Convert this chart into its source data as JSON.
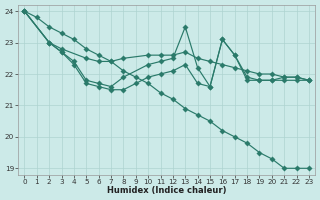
{
  "xlabel": "Humidex (Indice chaleur)",
  "bg_color": "#cceae8",
  "line_color": "#2a7a6a",
  "grid_color": "#aed4d0",
  "xlim": [
    -0.5,
    23.5
  ],
  "ylim": [
    18.8,
    24.2
  ],
  "yticks": [
    19,
    20,
    21,
    22,
    23,
    24
  ],
  "xticks": [
    0,
    1,
    2,
    3,
    4,
    5,
    6,
    7,
    8,
    9,
    10,
    11,
    12,
    13,
    14,
    15,
    16,
    17,
    18,
    19,
    20,
    21,
    22,
    23
  ],
  "series": [
    {
      "x": [
        0,
        1,
        2,
        3,
        4,
        5,
        6,
        7,
        8,
        9,
        10,
        11,
        12,
        13,
        14,
        15,
        16,
        17,
        18,
        19,
        20,
        21,
        22,
        23
      ],
      "y": [
        24.0,
        23.8,
        23.5,
        23.3,
        23.1,
        22.8,
        22.6,
        22.4,
        22.1,
        21.9,
        21.7,
        21.4,
        21.2,
        20.9,
        20.7,
        20.5,
        20.2,
        20.0,
        19.8,
        19.5,
        19.3,
        19.0,
        19.0,
        19.0
      ]
    },
    {
      "x": [
        0,
        2,
        3,
        5,
        6,
        7,
        8,
        10,
        11,
        12,
        13,
        14,
        15,
        16,
        17,
        18,
        19,
        20,
        21,
        22,
        23
      ],
      "y": [
        24.0,
        23.0,
        22.8,
        22.5,
        22.4,
        22.4,
        22.5,
        22.6,
        22.6,
        22.6,
        22.7,
        22.5,
        22.4,
        22.3,
        22.2,
        22.1,
        22.0,
        22.0,
        21.9,
        21.9,
        21.8
      ]
    },
    {
      "x": [
        0,
        2,
        3,
        4,
        5,
        6,
        7,
        8,
        10,
        11,
        12,
        13,
        14,
        15,
        16,
        17,
        18,
        19,
        20,
        21,
        22,
        23
      ],
      "y": [
        24.0,
        23.0,
        22.7,
        22.4,
        21.8,
        21.7,
        21.6,
        21.9,
        22.3,
        22.4,
        22.5,
        23.5,
        22.2,
        21.6,
        23.1,
        22.6,
        21.9,
        21.8,
        21.8,
        21.9,
        21.9,
        21.8
      ]
    },
    {
      "x": [
        0,
        2,
        3,
        4,
        5,
        6,
        7,
        8,
        9,
        10,
        11,
        12,
        13,
        14,
        15,
        16,
        17,
        18,
        19,
        20,
        21,
        22,
        23
      ],
      "y": [
        24.0,
        23.0,
        22.7,
        22.3,
        21.7,
        21.6,
        21.5,
        21.5,
        21.7,
        21.9,
        22.0,
        22.1,
        22.3,
        21.7,
        21.6,
        23.1,
        22.6,
        21.8,
        21.8,
        21.8,
        21.8,
        21.8,
        21.8
      ]
    }
  ]
}
